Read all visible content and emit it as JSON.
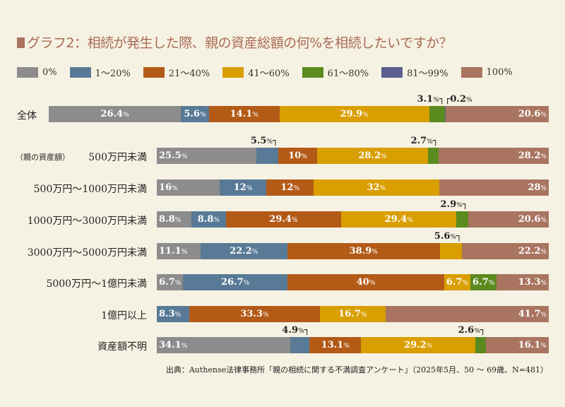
{
  "title": "グラフ2：相続が発生した際、親の資産総額の何%を相続したいですか？",
  "source": "出典：Authense法律事務所「親の相続に関する不満調査アンケート」（2025年5月、50 ～ 69歳、N=481）",
  "group_label": "（親の資産額）",
  "chart_data": {
    "type": "bar",
    "stacked": true,
    "orientation": "horizontal",
    "title": "グラフ2：相続が発生した際、親の資産総額の何%を相続したいですか？",
    "legend_position": "top",
    "series_names": [
      "0%",
      "1～20%",
      "21～40%",
      "41～60%",
      "61～80%",
      "81～99%",
      "100%"
    ],
    "colors": [
      "#8c8c8c",
      "#587a96",
      "#b35a17",
      "#d99e00",
      "#5b8a1e",
      "#5a5f8f",
      "#a97460"
    ],
    "categories": [
      "全体",
      "500万円未満",
      "500万円～1000万円未満",
      "1000万円～3000万円未満",
      "3000万円～5000万円未満",
      "5000万円～1億円未満",
      "1億円以上",
      "資産額不明"
    ],
    "values": [
      [
        26.4,
        5.6,
        14.1,
        29.9,
        3.1,
        0.2,
        20.6
      ],
      [
        25.5,
        5.5,
        10,
        28.2,
        2.7,
        0,
        28.2
      ],
      [
        16,
        12,
        12,
        32,
        0,
        0,
        28
      ],
      [
        8.8,
        8.8,
        29.4,
        29.4,
        2.9,
        0,
        20.6
      ],
      [
        11.1,
        22.2,
        38.9,
        5.6,
        0,
        0,
        22.2
      ],
      [
        6.7,
        26.7,
        40,
        6.7,
        6.7,
        0,
        13.3
      ],
      [
        0,
        8.3,
        33.3,
        16.7,
        0,
        0,
        41.7
      ],
      [
        34.1,
        4.9,
        13.1,
        29.2,
        2.6,
        0,
        16.1
      ]
    ],
    "outside_labels": [
      [
        4,
        5
      ],
      [
        1,
        4
      ],
      [],
      [
        4
      ],
      [
        3
      ],
      [],
      [],
      [
        1,
        4
      ]
    ],
    "unit": "%"
  }
}
